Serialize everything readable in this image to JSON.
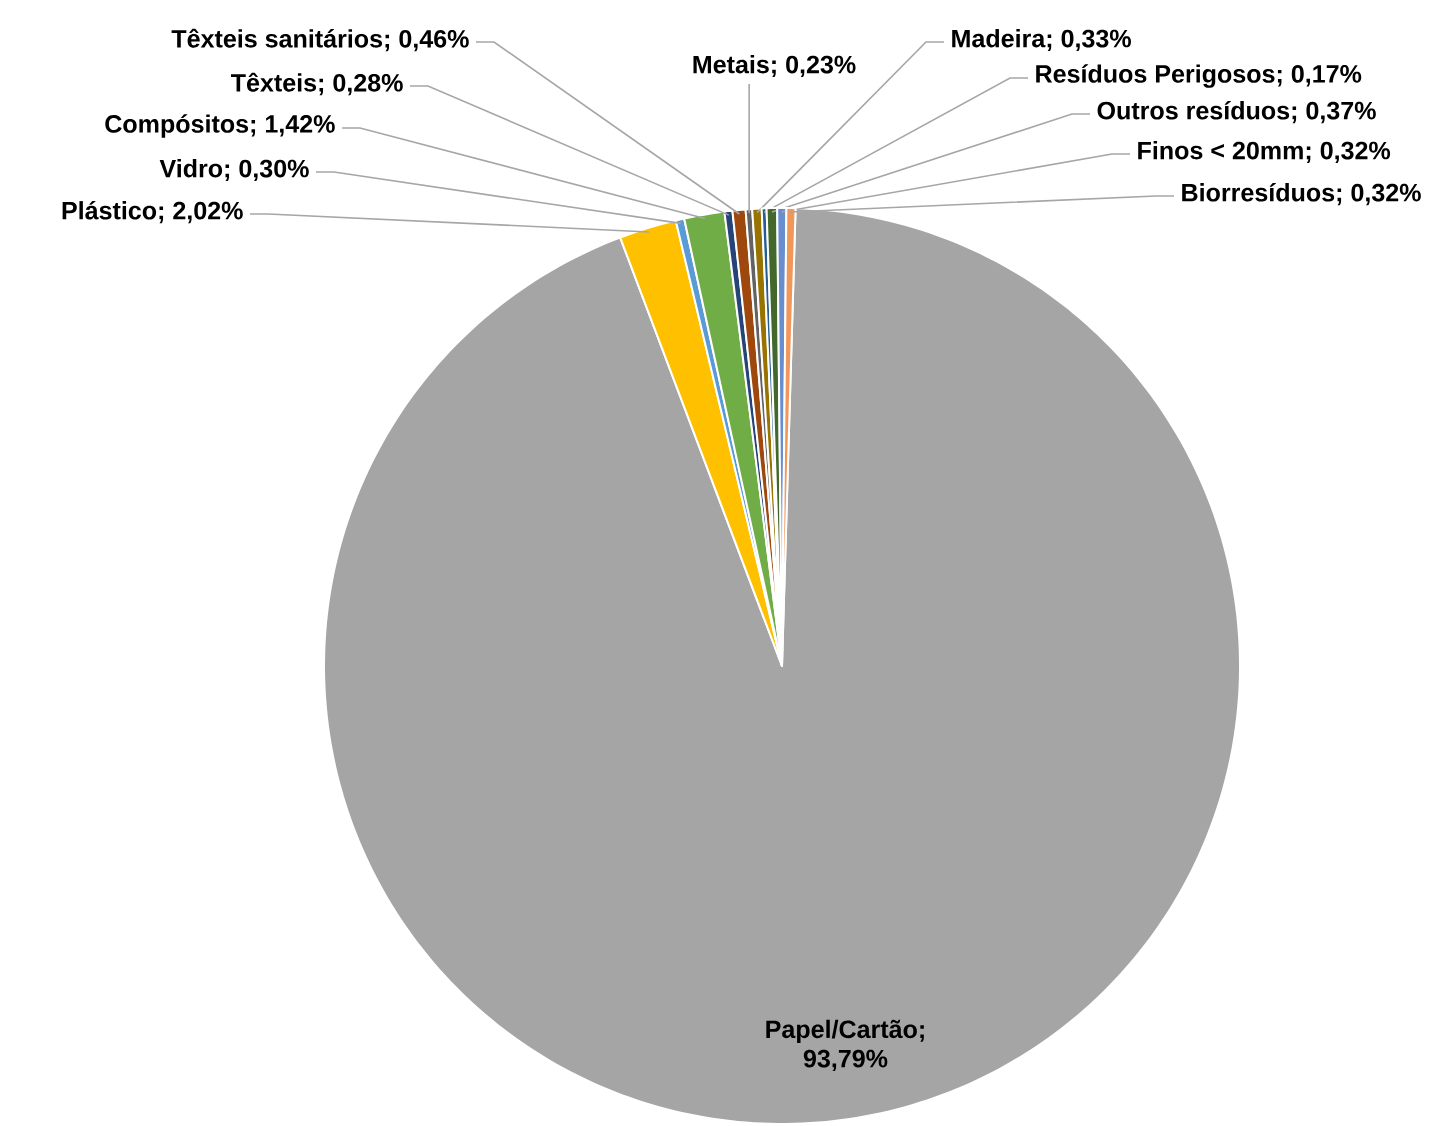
{
  "chart_data": {
    "type": "pie",
    "categories": [
      "Papel/Cartão",
      "Plástico",
      "Vidro",
      "Compósitos",
      "Têxteis",
      "Têxteis sanitários",
      "Metais",
      "Madeira",
      "Resíduos Perigosos",
      "Outros resíduos",
      "Finos < 20mm",
      "Biorresíduos"
    ],
    "values": [
      93.79,
      2.02,
      0.3,
      1.42,
      0.28,
      0.46,
      0.23,
      0.33,
      0.17,
      0.37,
      0.32,
      0.32
    ],
    "value_labels": [
      "; 93,79%",
      "; 2,02%",
      "; 0,30%",
      "; 1,42%",
      "; 0,28%",
      "; 0,46%",
      "; 0,23%",
      "; 0,33%",
      "; 0,17%",
      "; 0,37%",
      "; 0,32%",
      "; 0,32%"
    ],
    "colors": [
      "#a5a5a5",
      "#ffc000",
      "#5b9bd5",
      "#70ad47",
      "#264478",
      "#9e480e",
      "#636363",
      "#997300",
      "#255e91",
      "#43682b",
      "#698ed0",
      "#f1975a"
    ]
  }
}
